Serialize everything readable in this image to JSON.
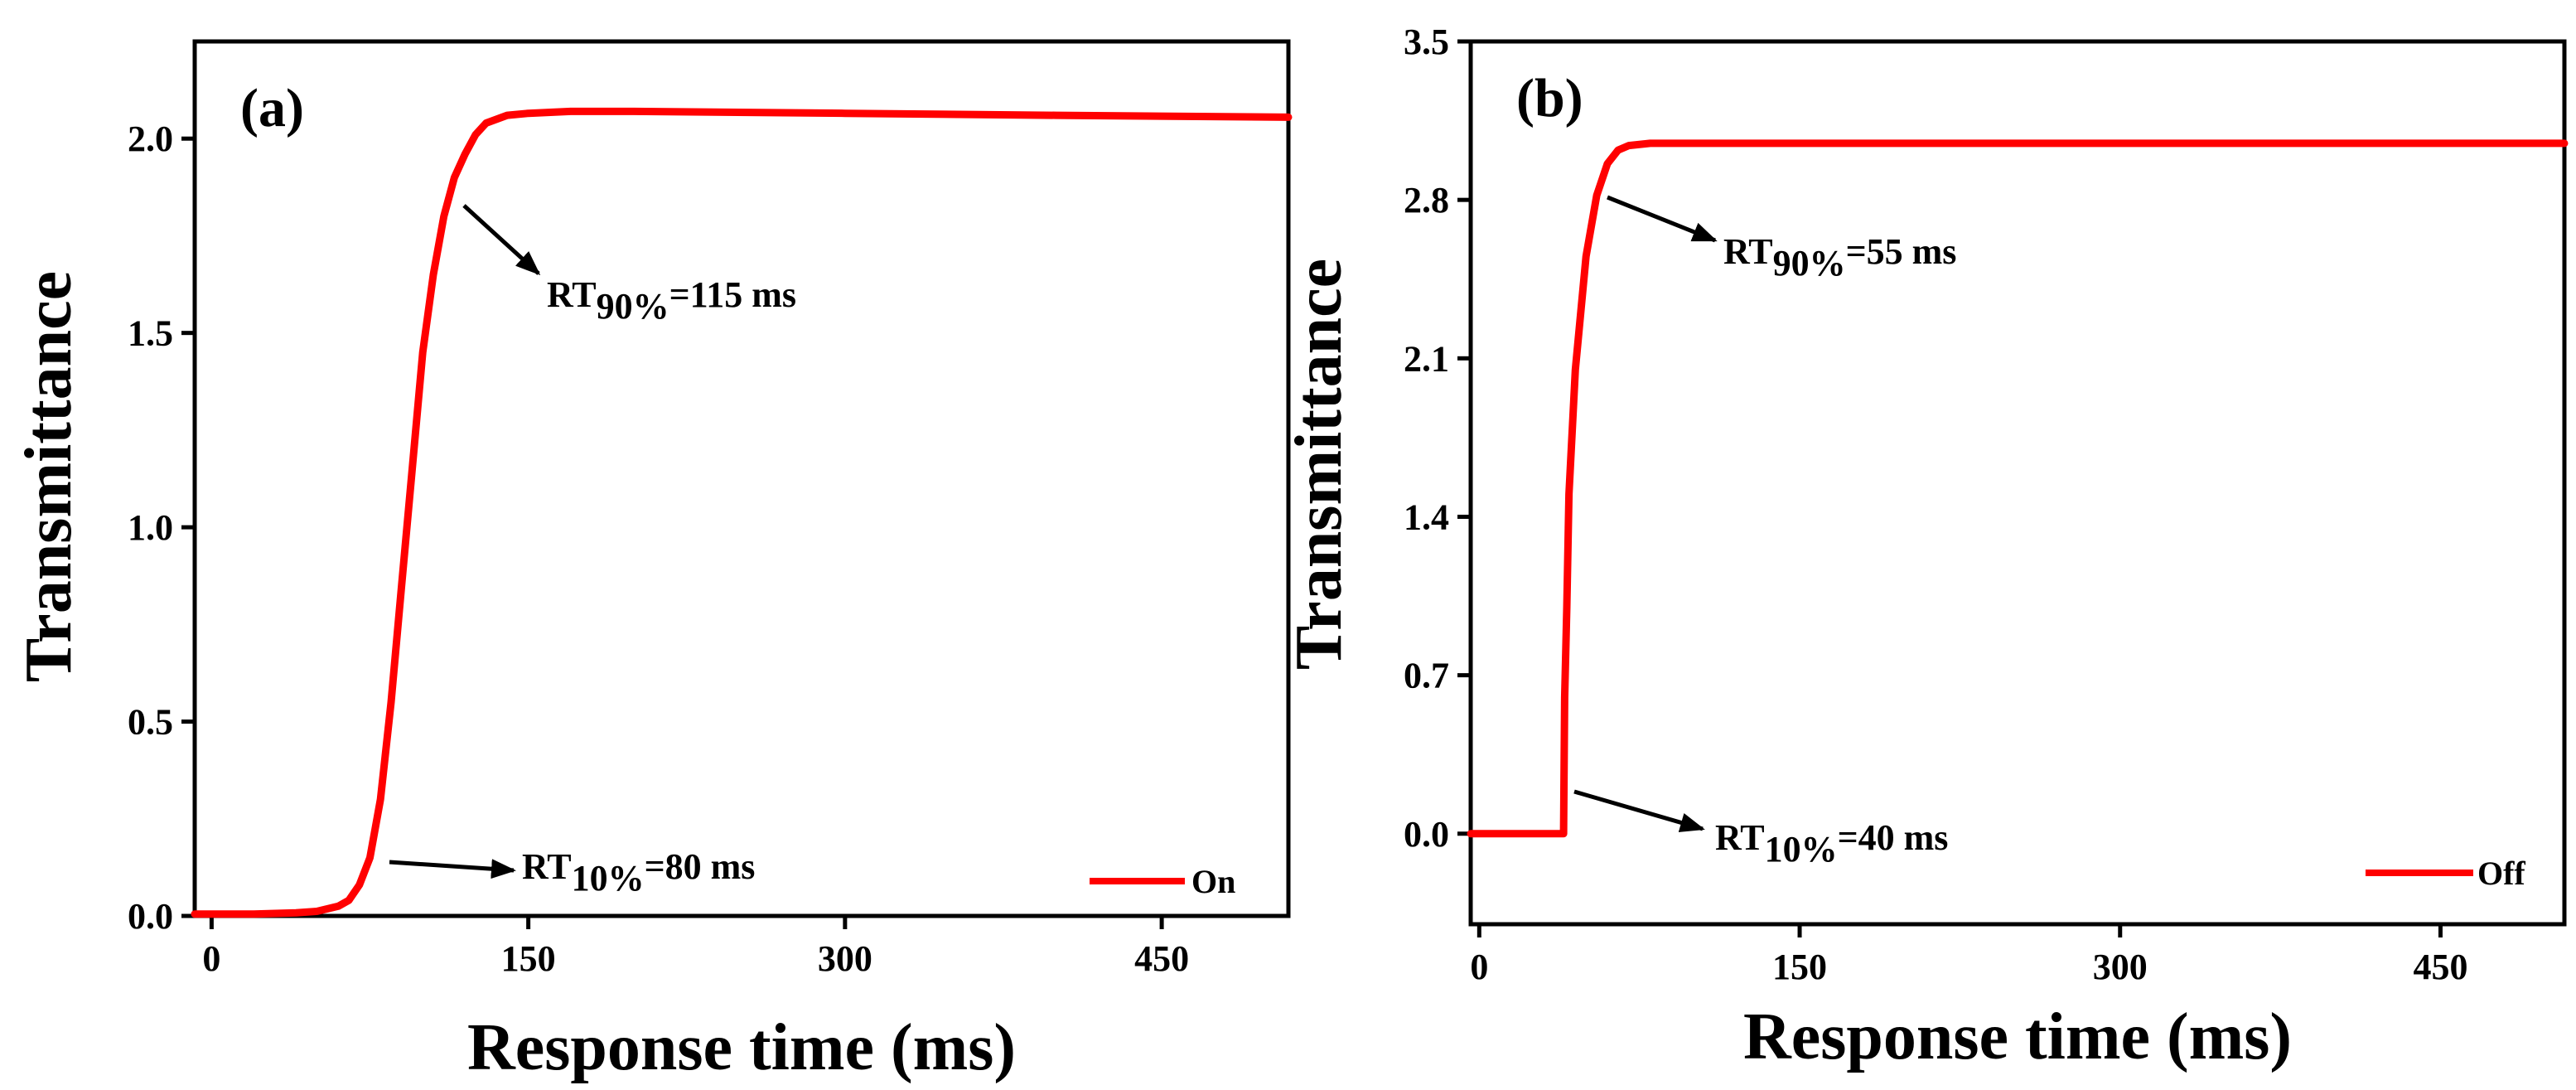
{
  "chart_data": [
    {
      "type": "line",
      "panel_label": "(a)",
      "xlabel": "Response time (ms)",
      "ylabel": "Transmittance",
      "xlim": [
        -8,
        510
      ],
      "ylim": [
        0,
        2.25
      ],
      "xticks": [
        0,
        150,
        300,
        450
      ],
      "xtick_labels": [
        "0",
        "150",
        "300",
        "450"
      ],
      "yticks": [
        0,
        0.5,
        1.0,
        1.5,
        2.0
      ],
      "ytick_labels": [
        "0.0",
        "0.5",
        "1.0",
        "1.5",
        "2.0"
      ],
      "series": [
        {
          "name": "On",
          "color": "#ff0000",
          "x": [
            -8,
            0,
            20,
            40,
            50,
            60,
            65,
            70,
            75,
            80,
            85,
            90,
            95,
            100,
            105,
            110,
            115,
            120,
            125,
            130,
            140,
            150,
            170,
            200,
            300,
            400,
            510
          ],
          "y": [
            0.005,
            0.005,
            0.005,
            0.008,
            0.012,
            0.025,
            0.04,
            0.08,
            0.15,
            0.3,
            0.55,
            0.85,
            1.15,
            1.45,
            1.65,
            1.8,
            1.9,
            1.96,
            2.01,
            2.04,
            2.06,
            2.065,
            2.07,
            2.07,
            2.065,
            2.06,
            2.055
          ]
        }
      ],
      "annotations": [
        {
          "base": "RT",
          "sub": "90%",
          "value": "=115 ms",
          "x": 115,
          "y": 1.83
        },
        {
          "base": "RT",
          "sub": "10%",
          "value": "=80 ms",
          "x": 80,
          "y": 0.18
        }
      ],
      "legend": {
        "position": "bottom-right",
        "label": "On"
      }
    },
    {
      "type": "line",
      "panel_label": "(b)",
      "xlabel": "Response time (ms)",
      "ylabel": "Transmittance",
      "xlim": [
        -4,
        508
      ],
      "ylim": [
        -0.4,
        3.5
      ],
      "xticks": [
        0,
        150,
        300,
        450
      ],
      "xtick_labels": [
        "0",
        "150",
        "300",
        "450"
      ],
      "yticks": [
        0,
        0.7,
        1.4,
        2.1,
        2.8,
        3.5
      ],
      "ytick_labels": [
        "0.0",
        "0.7",
        "1.4",
        "2.1",
        "2.8",
        "3.5"
      ],
      "series": [
        {
          "name": "Off",
          "color": "#ff0000",
          "x": [
            -4,
            0,
            39.5,
            40,
            41,
            42,
            45,
            50,
            55,
            60,
            65,
            70,
            80,
            100,
            200,
            300,
            400,
            508
          ],
          "y": [
            0,
            0,
            0,
            0.6,
            1.0,
            1.5,
            2.05,
            2.55,
            2.82,
            2.96,
            3.02,
            3.04,
            3.05,
            3.05,
            3.05,
            3.05,
            3.05,
            3.05
          ]
        }
      ],
      "annotations": [
        {
          "base": "RT",
          "sub": "90%",
          "value": "=55 ms",
          "x": 55,
          "y": 2.82
        },
        {
          "base": "RT",
          "sub": "10%",
          "value": "=40 ms",
          "x": 40,
          "y": 0.3
        }
      ],
      "legend": {
        "position": "bottom-right",
        "label": "Off"
      }
    }
  ]
}
